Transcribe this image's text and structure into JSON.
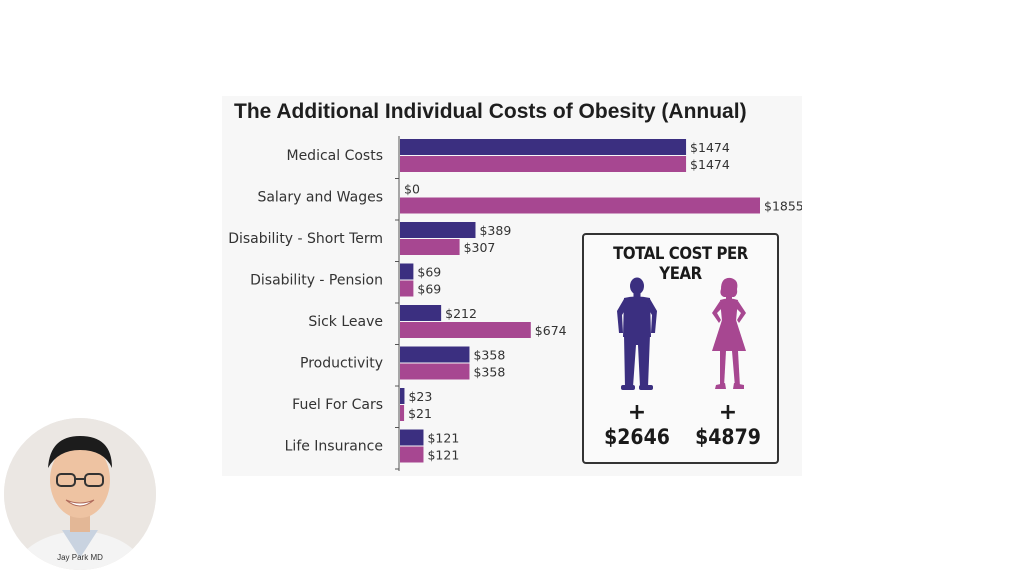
{
  "colors": {
    "men": "#3b2f80",
    "women": "#a74791",
    "box_border": "#333333"
  },
  "total_box": {
    "title": "TOTAL COST PER YEAR",
    "men": {
      "sign": "+",
      "value": "$2646"
    },
    "women": {
      "sign": "+",
      "value": "$4879"
    }
  },
  "presenter": {
    "name": "Jay Park MD"
  },
  "chart_data": {
    "type": "bar",
    "orientation": "horizontal",
    "title": "The Additional Individual Costs of Obesity (Annual)",
    "categories": [
      "Medical Costs",
      "Salary and Wages",
      "Disability - Short Term",
      "Disability - Pension",
      "Sick Leave",
      "Productivity",
      "Fuel For Cars",
      "Life Insurance"
    ],
    "series": [
      {
        "values": [
          1474,
          0,
          389,
          69,
          212,
          358,
          23,
          121
        ],
        "labels": [
          "$1474",
          "$0",
          "$389",
          "$69",
          "$212",
          "$358",
          "$23",
          "$121"
        ],
        "color": "#3b2f80"
      },
      {
        "values": [
          1474,
          1855,
          307,
          69,
          674,
          358,
          21,
          121
        ],
        "labels": [
          "$1474",
          "$1855",
          "$307",
          "$69",
          "$674",
          "$358",
          "$21",
          "$121"
        ],
        "color": "#a74791"
      }
    ],
    "xlim": [
      0,
      1855
    ],
    "grid": false,
    "legend": "none"
  }
}
